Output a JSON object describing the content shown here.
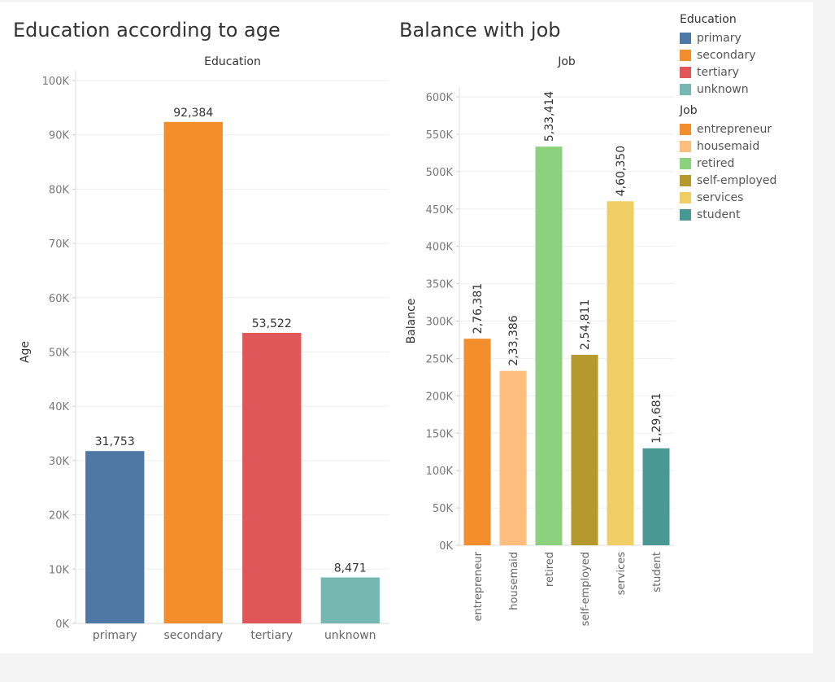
{
  "legend": {
    "education": {
      "title": "Education",
      "items": [
        {
          "label": "primary",
          "color": "#4e79a7"
        },
        {
          "label": "secondary",
          "color": "#f28e2b"
        },
        {
          "label": "tertiary",
          "color": "#e15759"
        },
        {
          "label": "unknown",
          "color": "#76b7b2"
        }
      ]
    },
    "job": {
      "title": "Job",
      "items": [
        {
          "label": "entrepreneur",
          "color": "#f28e2b"
        },
        {
          "label": "housemaid",
          "color": "#ffbe7d"
        },
        {
          "label": "retired",
          "color": "#8cd17d"
        },
        {
          "label": "self-employed",
          "color": "#b6992d"
        },
        {
          "label": "services",
          "color": "#f1ce63"
        },
        {
          "label": "student",
          "color": "#499894"
        }
      ]
    }
  },
  "chart_data": [
    {
      "type": "bar",
      "title": "Education according to age",
      "header": "Education",
      "ylabel": "Age",
      "categories": [
        "primary",
        "secondary",
        "tertiary",
        "unknown"
      ],
      "values": [
        31753,
        92384,
        53522,
        8471
      ],
      "value_labels": [
        "31,753",
        "92,384",
        "53,522",
        "8,471"
      ],
      "colors": [
        "#4e79a7",
        "#f28e2b",
        "#e15759",
        "#76b7b2"
      ],
      "ylim": [
        0,
        100000
      ],
      "yticks": [
        0,
        10000,
        20000,
        30000,
        40000,
        50000,
        60000,
        70000,
        80000,
        90000,
        100000
      ],
      "ytick_labels": [
        "0K",
        "10K",
        "20K",
        "30K",
        "40K",
        "50K",
        "60K",
        "70K",
        "80K",
        "90K",
        "100K"
      ],
      "grid": true
    },
    {
      "type": "bar",
      "title": "Balance with job",
      "header": "Job",
      "ylabel": "Balance",
      "categories": [
        "entrepreneur",
        "housemaid",
        "retired",
        "self-employed",
        "services",
        "student"
      ],
      "values": [
        276381,
        233386,
        533414,
        254811,
        460350,
        129681
      ],
      "value_labels": [
        "2,76,381",
        "2,33,386",
        "5,33,414",
        "2,54,811",
        "4,60,350",
        "1,29,681"
      ],
      "colors": [
        "#f28e2b",
        "#ffbe7d",
        "#8cd17d",
        "#b6992d",
        "#f1ce63",
        "#499894"
      ],
      "ylim": [
        0,
        600000
      ],
      "yticks": [
        0,
        50000,
        100000,
        150000,
        200000,
        250000,
        300000,
        350000,
        400000,
        450000,
        500000,
        550000,
        600000
      ],
      "ytick_labels": [
        "0K",
        "50K",
        "100K",
        "150K",
        "200K",
        "250K",
        "300K",
        "350K",
        "400K",
        "450K",
        "500K",
        "550K",
        "600K"
      ],
      "grid": true
    }
  ]
}
